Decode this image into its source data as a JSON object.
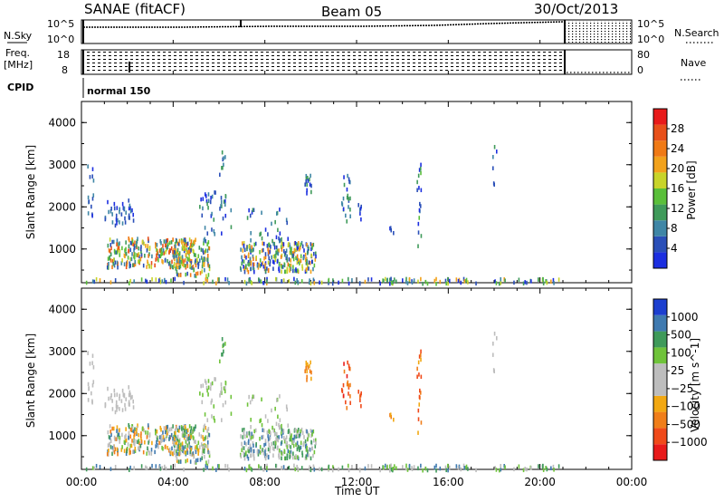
{
  "header": {
    "title": "SANAE (fitACF)",
    "beam": "Beam 05",
    "date": "30/Oct/2013"
  },
  "top_panels": {
    "nsky_label": "N.Sky",
    "nsky_ticks": [
      "10^5",
      "10^0"
    ],
    "nsearch_label": "N.Search",
    "nsearch_ticks": [
      "10^5",
      "10^0"
    ],
    "freq_label_1": "Freq.",
    "freq_label_2": "[MHz]",
    "freq_ticks": [
      "18",
      "8"
    ],
    "nave_label": "Nave",
    "nave_ticks": [
      "80",
      "0"
    ],
    "cpid_label": "CPID",
    "cpid_value": "normal 150"
  },
  "colors": {
    "power": [
      "#1c2fe0",
      "#2a4fb8",
      "#3f86a6",
      "#3f9a5a",
      "#5abf3a",
      "#c8d42a",
      "#f2a21c",
      "#f07a16",
      "#e8501a",
      "#e81a1a"
    ],
    "velocity": [
      "#e81a1a",
      "#f04a1a",
      "#f07e1a",
      "#f2a812",
      "#bdbdbd",
      "#bdbdbd",
      "#6fc33a",
      "#3f9a5a",
      "#3f7ab0",
      "#1c3fcf"
    ]
  },
  "chart_data": [
    {
      "type": "heatmap",
      "name": "power",
      "ylabel": "Slant Range [km]",
      "ylim": [
        200,
        4500
      ],
      "yticks": [
        1000,
        2000,
        3000,
        4000
      ],
      "xticks": [
        "00:00",
        "04:00",
        "08:00",
        "12:00",
        "16:00",
        "20:00",
        "00:00"
      ],
      "xlabel": "",
      "colorbar_label": "Power [dB]",
      "colorbar_ticks": [
        "4",
        "8",
        "12",
        "16",
        "20",
        "24",
        "28"
      ]
    },
    {
      "type": "heatmap",
      "name": "velocity",
      "ylabel": "Slant Range [km]",
      "ylim": [
        200,
        4500
      ],
      "yticks": [
        1000,
        2000,
        3000,
        4000
      ],
      "xticks": [
        "00:00",
        "04:00",
        "08:00",
        "12:00",
        "16:00",
        "20:00",
        "00:00"
      ],
      "xlabel": "Time UT",
      "colorbar_label": "Velocity [m s^-1]",
      "colorbar_ticks": [
        "1000",
        "500",
        "100",
        "25",
        "−25",
        "−100",
        "−500",
        "−1000"
      ]
    }
  ]
}
